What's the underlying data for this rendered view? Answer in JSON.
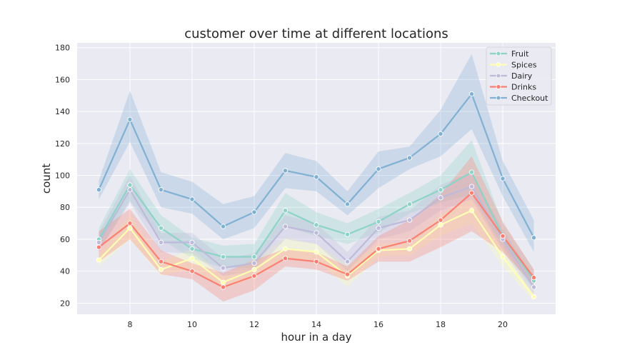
{
  "chart_data": {
    "type": "line",
    "title": "customer over time at different locations",
    "xlabel": "hour in a day",
    "ylabel": "count",
    "xlim": [
      6.3,
      21.7
    ],
    "ylim": [
      13,
      183
    ],
    "xticks": [
      8,
      10,
      12,
      14,
      16,
      18,
      20
    ],
    "yticks": [
      20,
      40,
      60,
      80,
      100,
      120,
      140,
      160,
      180
    ],
    "grid": true,
    "legend_position": "top-right",
    "x": [
      7,
      8,
      9,
      10,
      11,
      12,
      13,
      14,
      15,
      16,
      17,
      18,
      19,
      20,
      21
    ],
    "series": [
      {
        "name": "Fruit",
        "color": "#8dd3c7",
        "values": [
          60,
          94,
          67,
          54,
          49,
          49,
          78,
          69,
          63,
          71,
          82,
          91,
          102,
          62,
          34
        ],
        "ci_low": [
          53,
          84,
          60,
          48,
          42,
          42,
          68,
          62,
          57,
          64,
          76,
          83,
          88,
          55,
          28
        ],
        "ci_high": [
          67,
          104,
          75,
          61,
          56,
          57,
          89,
          77,
          70,
          79,
          89,
          100,
          122,
          70,
          41
        ]
      },
      {
        "name": "Spices",
        "color": "#ffffb3",
        "values": [
          47,
          67,
          41,
          48,
          33,
          41,
          54,
          52,
          37,
          53,
          54,
          69,
          78,
          49,
          24
        ],
        "ci_low": [
          43,
          60,
          37,
          42,
          29,
          36,
          48,
          47,
          30,
          49,
          50,
          62,
          70,
          43,
          21
        ],
        "ci_high": [
          51,
          75,
          46,
          54,
          37,
          47,
          61,
          57,
          44,
          57,
          58,
          75,
          86,
          56,
          27
        ]
      },
      {
        "name": "Dairy",
        "color": "#bebada",
        "values": [
          58,
          91,
          58,
          58,
          42,
          45,
          68,
          64,
          46,
          67,
          72,
          86,
          93,
          60,
          30
        ],
        "ci_low": [
          52,
          83,
          52,
          51,
          37,
          40,
          60,
          57,
          40,
          60,
          65,
          78,
          85,
          53,
          25
        ],
        "ci_high": [
          64,
          100,
          64,
          64,
          48,
          51,
          75,
          70,
          52,
          74,
          78,
          94,
          102,
          66,
          36
        ]
      },
      {
        "name": "Drinks",
        "color": "#fb8072",
        "values": [
          55,
          70,
          46,
          40,
          30,
          37,
          48,
          46,
          38,
          54,
          59,
          72,
          89,
          62,
          36
        ],
        "ci_low": [
          46,
          60,
          38,
          35,
          21,
          28,
          43,
          41,
          34,
          46,
          46,
          55,
          65,
          52,
          31
        ],
        "ci_high": [
          65,
          79,
          53,
          45,
          39,
          47,
          54,
          52,
          43,
          62,
          72,
          88,
          112,
          71,
          41
        ]
      },
      {
        "name": "Checkout",
        "color": "#80b1d3",
        "values": [
          91,
          135,
          91,
          85,
          68,
          77,
          103,
          99,
          82,
          104,
          111,
          126,
          151,
          98,
          61
        ],
        "ci_low": [
          85,
          121,
          80,
          76,
          60,
          67,
          92,
          90,
          75,
          92,
          104,
          112,
          129,
          87,
          52
        ],
        "ci_high": [
          97,
          153,
          102,
          96,
          82,
          87,
          114,
          109,
          90,
          115,
          118,
          141,
          176,
          109,
          72
        ]
      }
    ]
  }
}
